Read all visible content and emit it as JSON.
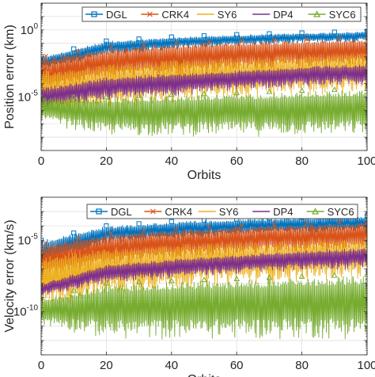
{
  "chart_data": [
    {
      "type": "line",
      "title": "",
      "xlabel": "Orbits",
      "ylabel": "Position error (km)",
      "yscale": "log",
      "xlim": [
        0,
        100
      ],
      "ylim": [
        1e-09,
        100
      ],
      "xticks": [
        0,
        20,
        40,
        60,
        80,
        100
      ],
      "xtick_labels": [
        "0",
        "20",
        "40",
        "60",
        "80",
        "100"
      ],
      "yticks": [
        1e-05,
        1
      ],
      "ytick_labels": [
        {
          "base": "10",
          "exp": "-5"
        },
        {
          "base": "10",
          "exp": "0"
        }
      ],
      "grid": true,
      "legend_position": "top",
      "series": [
        {
          "name": "DGL",
          "color": "#0072BD",
          "marker": "square",
          "lower": [
            0.001,
            0.01,
            0.03,
            0.06,
            0.1,
            0.12
          ],
          "upper": [
            0.01,
            0.15,
            0.3,
            0.45,
            0.6,
            0.8
          ]
        },
        {
          "name": "CRK4",
          "color": "#D95319",
          "marker": "x",
          "lower": [
            1e-05,
            0.0001,
            0.0003,
            0.0006,
            0.001,
            0.0015
          ],
          "upper": [
            0.01,
            0.05,
            0.1,
            0.15,
            0.2,
            0.25
          ]
        },
        {
          "name": "SY6",
          "color": "#EDB120",
          "marker": "none",
          "lower": [
            1e-07,
            1e-06,
            3e-06,
            6e-06,
            1e-05,
            2e-05
          ],
          "upper": [
            0.001,
            0.003,
            0.006,
            0.01,
            0.015,
            0.02
          ]
        },
        {
          "name": "DP4",
          "color": "#7E2F8E",
          "marker": "none",
          "lower": [
            1e-06,
            5e-06,
            1e-05,
            3e-05,
            5e-05,
            7e-05
          ],
          "upper": [
            5e-05,
            0.0003,
            0.0006,
            0.001,
            0.002,
            0.003
          ]
        },
        {
          "name": "SYC6",
          "color": "#77AC30",
          "marker": "triangle",
          "lower": [
            1e-07,
            1e-08,
            1e-08,
            1e-08,
            1e-08,
            1e-08
          ],
          "upper": [
            1e-05,
            1e-05,
            1.5e-05,
            2e-05,
            3e-05,
            4e-05
          ]
        }
      ]
    },
    {
      "type": "line",
      "title": "",
      "xlabel": "Orbits",
      "ylabel": "Velocity error (km/s)",
      "yscale": "log",
      "xlim": [
        0,
        100
      ],
      "ylim": [
        1e-13,
        0.01
      ],
      "xticks": [
        0,
        20,
        40,
        60,
        80,
        100
      ],
      "xtick_labels": [
        "0",
        "20",
        "40",
        "60",
        "80",
        "100"
      ],
      "yticks": [
        1e-10,
        1e-05
      ],
      "ytick_labels": [
        {
          "base": "10",
          "exp": "-10"
        },
        {
          "base": "10",
          "exp": "-5"
        }
      ],
      "grid": true,
      "legend_position": "top",
      "series": [
        {
          "name": "DGL",
          "color": "#0072BD",
          "marker": "square",
          "lower": [
            1e-07,
            5e-06,
            1e-05,
            2e-05,
            3e-05,
            4e-05
          ],
          "upper": [
            1e-05,
            0.0001,
            0.0002,
            0.0003,
            0.0004,
            0.0005
          ]
        },
        {
          "name": "CRK4",
          "color": "#D95319",
          "marker": "x",
          "lower": [
            1e-08,
            1e-07,
            3e-07,
            6e-07,
            1e-06,
            1.5e-06
          ],
          "upper": [
            5e-06,
            3e-05,
            6e-05,
            0.0001,
            0.00015,
            0.0002
          ]
        },
        {
          "name": "SY6",
          "color": "#EDB120",
          "marker": "none",
          "lower": [
            1e-10,
            1e-09,
            3e-09,
            6e-09,
            1e-08,
            2e-08
          ],
          "upper": [
            1e-06,
            3e-06,
            5e-06,
            8e-06,
            1e-05,
            1.5e-05
          ]
        },
        {
          "name": "DP4",
          "color": "#7E2F8E",
          "marker": "none",
          "lower": [
            1e-09,
            1e-08,
            2e-08,
            4e-08,
            7e-08,
            1e-07
          ],
          "upper": [
            1e-08,
            2e-07,
            5e-07,
            1e-06,
            2e-06,
            3e-06
          ]
        },
        {
          "name": "SYC6",
          "color": "#77AC30",
          "marker": "triangle",
          "lower": [
            1e-11,
            1e-12,
            1e-12,
            1e-12,
            1e-12,
            1e-12
          ],
          "upper": [
            1e-09,
            1e-08,
            1.5e-08,
            2e-08,
            3e-08,
            4e-08
          ]
        }
      ]
    }
  ]
}
